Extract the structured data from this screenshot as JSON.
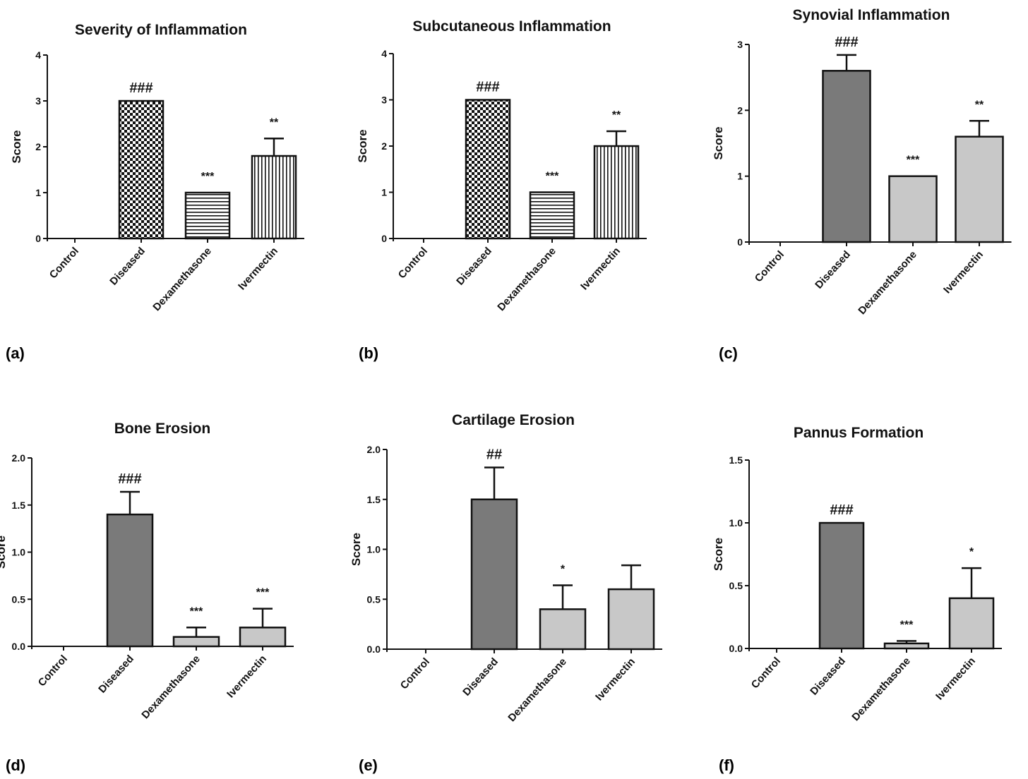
{
  "chart_data": [
    {
      "panel_label": "(a)",
      "type": "bar",
      "title": "Severity of Inflammation",
      "ylabel": "Score",
      "xlabel": "",
      "categories": [
        "Control",
        "Diseased",
        "Dexamethasone",
        "Ivermectin"
      ],
      "values": [
        0,
        3.0,
        1.0,
        1.8
      ],
      "errors": [
        0,
        0,
        0,
        0.38
      ],
      "annotations": [
        "",
        "###",
        "***",
        "**"
      ],
      "fills": [
        "none",
        "checker",
        "hlines",
        "vlines"
      ],
      "ylim": [
        0,
        4
      ],
      "yticks": [
        "0",
        "1",
        "2",
        "3",
        "4"
      ],
      "grid": false
    },
    {
      "panel_label": "(b)",
      "type": "bar",
      "title": "Subcutaneous Inflammation",
      "ylabel": "Score",
      "xlabel": "",
      "categories": [
        "Control",
        "Diseased",
        "Dexamethasone",
        "Ivermectin"
      ],
      "values": [
        0,
        3.0,
        1.0,
        2.0
      ],
      "errors": [
        0,
        0,
        0,
        0.32
      ],
      "annotations": [
        "",
        "###",
        "***",
        "**"
      ],
      "fills": [
        "none",
        "checker",
        "hlines",
        "vlines"
      ],
      "ylim": [
        0,
        4
      ],
      "yticks": [
        "0",
        "1",
        "2",
        "3",
        "4"
      ],
      "grid": false
    },
    {
      "panel_label": "(c)",
      "type": "bar",
      "title": "Synovial Inflammation",
      "ylabel": "Score",
      "xlabel": "",
      "categories": [
        "Control",
        "Diseased",
        "Dexamethasone",
        "Ivermectin"
      ],
      "values": [
        0,
        2.6,
        1.0,
        1.6
      ],
      "errors": [
        0,
        0.24,
        0,
        0.24
      ],
      "annotations": [
        "",
        "###",
        "***",
        "**"
      ],
      "fills": [
        "none",
        "#7a7a7a",
        "#c8c8c8",
        "#c8c8c8"
      ],
      "ylim": [
        0,
        3
      ],
      "yticks": [
        "0",
        "1",
        "2",
        "3"
      ],
      "grid": false
    },
    {
      "panel_label": "(d)",
      "type": "bar",
      "title": "Bone Erosion",
      "ylabel": "Score",
      "xlabel": "",
      "categories": [
        "Control",
        "Diseased",
        "Dexamethasone",
        "Ivermectin"
      ],
      "values": [
        0,
        1.4,
        0.1,
        0.2
      ],
      "errors": [
        0,
        0.24,
        0.1,
        0.2
      ],
      "annotations": [
        "",
        "###",
        "***",
        "***"
      ],
      "fills": [
        "none",
        "#7a7a7a",
        "#c8c8c8",
        "#c8c8c8"
      ],
      "ylim": [
        0,
        2.0
      ],
      "yticks": [
        "0.0",
        "0.5",
        "1.0",
        "1.5",
        "2.0"
      ],
      "grid": false
    },
    {
      "panel_label": "(e)",
      "type": "bar",
      "title": "Cartilage Erosion",
      "ylabel": "Score",
      "xlabel": "",
      "categories": [
        "Control",
        "Diseased",
        "Dexamethasone",
        "Ivermectin"
      ],
      "values": [
        0,
        1.5,
        0.4,
        0.6
      ],
      "errors": [
        0,
        0.32,
        0.24,
        0.24
      ],
      "annotations": [
        "",
        "##",
        "*",
        ""
      ],
      "fills": [
        "none",
        "#7a7a7a",
        "#c8c8c8",
        "#c8c8c8"
      ],
      "ylim": [
        0,
        2.0
      ],
      "yticks": [
        "0.0",
        "0.5",
        "1.0",
        "1.5",
        "2.0"
      ],
      "grid": false
    },
    {
      "panel_label": "(f)",
      "type": "bar",
      "title": "Pannus Formation",
      "ylabel": "Score",
      "xlabel": "",
      "categories": [
        "Control",
        "Diseased",
        "Dexamethasone",
        "Ivermectin"
      ],
      "values": [
        0,
        1.0,
        0.04,
        0.4
      ],
      "errors": [
        0,
        0,
        0.02,
        0.24
      ],
      "annotations": [
        "",
        "###",
        "***",
        "*"
      ],
      "fills": [
        "none",
        "#7a7a7a",
        "#c8c8c8",
        "#c8c8c8"
      ],
      "ylim": [
        0,
        1.5
      ],
      "yticks": [
        "0.0",
        "0.5",
        "1.0",
        "1.5"
      ],
      "grid": false
    }
  ]
}
